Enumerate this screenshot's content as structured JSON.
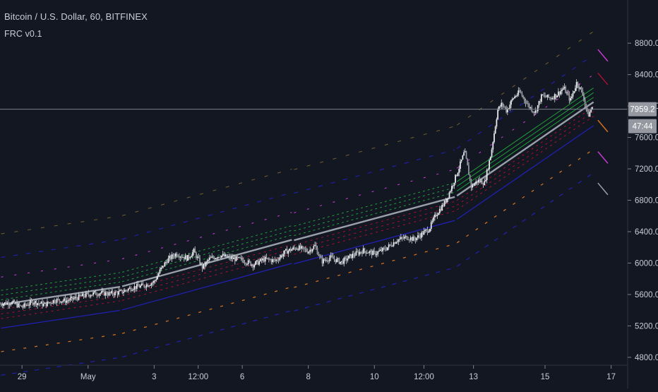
{
  "header": {
    "title": "Bitcoin / U.S. Dollar, 60, BITFINEX",
    "indicator": "FRC v0.1"
  },
  "colors": {
    "background": "#131722",
    "text": "#c7ccd6",
    "candle": "#d6d8dc",
    "regression_mid": "#9aa0aa",
    "band_inner": "#1f9e3a",
    "band_upper": "#a7112f",
    "band_lower": "#1f1fa8",
    "band_outer_upper": "#6b5a2e",
    "band_magenta": "#c23ad0",
    "band_orange": "#d07020",
    "price_tag_bg": "#9598a1"
  },
  "chart_data": {
    "type": "line",
    "title": "Bitcoin / U.S. Dollar, 60, BITFINEX",
    "indicator": "FRC v0.1",
    "xlabel": "",
    "ylabel": "",
    "x_tick_labels": [
      "29",
      "May",
      "3",
      "12:00",
      "6",
      "8",
      "10",
      "12:00",
      "13",
      "15",
      "17"
    ],
    "x_tick_pos": [
      1,
      4,
      7,
      9,
      11,
      14,
      17,
      19.25,
      21.5,
      24.75,
      27.75
    ],
    "x_range": [
      0,
      28.5
    ],
    "y_tick_values": [
      4800,
      5200,
      5600,
      6000,
      6400,
      6800,
      7200,
      7600,
      8000,
      8400,
      8800
    ],
    "y_tick_labels": [
      "4800.0",
      "5200.0",
      "5600.0",
      "6000.0",
      "6400.0",
      "6800.0",
      "7200.0",
      "7600.0",
      "8000.0",
      "8400.0",
      "8800.0"
    ],
    "ylim": [
      4700,
      9350
    ],
    "last_price": 7959.2,
    "last_price_label": "7959.2",
    "countdown_label": "47:44",
    "horizontal_line": 7959.2,
    "grid": false,
    "price_series": {
      "x": [
        0,
        0.5,
        1,
        1.5,
        2,
        2.5,
        3,
        3.5,
        4,
        4.5,
        5,
        5.5,
        6,
        6.5,
        7,
        7.3,
        7.6,
        8,
        8.5,
        8.8,
        9.2,
        9.5,
        10,
        10.5,
        11,
        11.5,
        12,
        12.5,
        13,
        13.5,
        14,
        14.3,
        14.6,
        15,
        15.5,
        16,
        16.5,
        17,
        17.5,
        18,
        18.5,
        18.8,
        19.2,
        19.5,
        19.8,
        20.2,
        20.5,
        20.8,
        21.1,
        21.4,
        21.7,
        22,
        22.3,
        22.6,
        22.8,
        23,
        23.3,
        23.6,
        24,
        24.3,
        24.6,
        25,
        25.3,
        25.6,
        25.9,
        26.2,
        26.5,
        26.7,
        26.9
      ],
      "y": [
        5480,
        5500,
        5440,
        5510,
        5470,
        5530,
        5520,
        5560,
        5600,
        5620,
        5610,
        5630,
        5690,
        5710,
        5760,
        5920,
        6040,
        6120,
        6060,
        6150,
        5940,
        6050,
        6100,
        6060,
        6040,
        5980,
        6050,
        6030,
        6150,
        6200,
        6150,
        6220,
        6020,
        6070,
        6010,
        6100,
        6160,
        6120,
        6180,
        6290,
        6330,
        6300,
        6380,
        6440,
        6620,
        6770,
        6960,
        7180,
        7420,
        6970,
        7050,
        7020,
        7400,
        7950,
        8030,
        7940,
        8100,
        8180,
        8000,
        7920,
        8130,
        8100,
        8150,
        8230,
        8070,
        8310,
        8120,
        7870,
        7990
      ]
    },
    "bands": [
      {
        "name": "mid",
        "x": [
          0,
          5.5,
          13.3,
          15,
          20.7,
          22,
          27
        ],
        "y": [
          5470,
          5700,
          6300,
          5970,
          6850,
          7050,
          8060
        ]
      }
    ]
  }
}
